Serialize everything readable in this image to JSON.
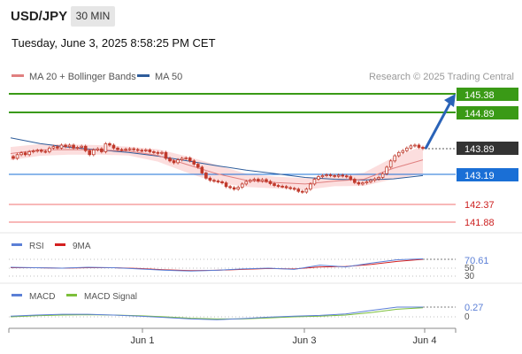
{
  "header": {
    "symbol": "USD/JPY",
    "timeframe": "30 MIN",
    "datetime": "Tuesday, June 3, 2025 8:58:25 PM CET"
  },
  "legend": {
    "ma20": "MA 20 + Bollinger Bands",
    "ma50": "MA 50",
    "credit": "Research © 2025 Trading Central"
  },
  "colors": {
    "candle": "#c0392b",
    "ma20": "#e08080",
    "ma50": "#2e5c9a",
    "bb_fill": "#fbd3d3",
    "resistance": "#3a9a16",
    "pivot": "#1a6fd6",
    "support": "#f5a0a0",
    "support_text": "#cc1f1f",
    "last_price_bg": "#333333",
    "rsi": "#5b7fd6",
    "rsi_ma": "#d42020",
    "macd": "#5b7fd6",
    "macd_signal": "#7cbf3a"
  },
  "price_levels": {
    "resistances": [
      "145.38",
      "144.89"
    ],
    "last": "143.89",
    "pivot": "143.19",
    "supports": [
      "142.37",
      "141.88"
    ]
  },
  "rsi_panel": {
    "labels": [
      "RSI",
      "9MA"
    ],
    "value": "70.61",
    "ticks": [
      "50",
      "30"
    ]
  },
  "macd_panel": {
    "labels": [
      "MACD",
      "MACD Signal"
    ],
    "value": "0.27",
    "ticks": [
      "0"
    ]
  },
  "x_axis": {
    "labels": [
      "Jun 1",
      "Jun 3",
      "Jun 4"
    ]
  },
  "chart_data": {
    "type": "candlestick",
    "series": [
      {
        "name": "USD/JPY",
        "values": [
          143.62,
          143.72,
          143.77,
          143.72,
          143.8,
          143.82,
          143.84,
          143.81,
          143.8,
          143.9,
          143.94,
          143.9,
          143.98,
          143.94,
          143.98,
          143.9,
          143.92,
          143.95,
          143.83,
          143.72,
          143.85,
          143.88,
          143.8,
          144.02,
          143.98,
          143.9,
          143.86,
          143.85,
          143.87,
          143.88,
          143.86,
          143.84,
          143.83,
          143.85,
          143.8,
          143.78,
          143.76,
          143.78,
          143.62,
          143.55,
          143.5,
          143.58,
          143.62,
          143.63,
          143.55,
          143.46,
          143.38,
          143.22,
          143.08,
          143.02,
          143.0,
          142.98,
          142.95,
          142.85,
          142.82,
          142.78,
          142.83,
          142.92,
          142.99,
          143.02,
          143.05,
          143.0,
          143.04,
          142.99,
          142.93,
          142.88,
          142.86,
          142.85,
          142.82,
          142.8,
          142.78,
          142.72,
          142.7,
          142.78,
          142.92,
          143.05,
          143.12,
          143.15,
          143.17,
          143.15,
          143.13,
          143.16,
          143.14,
          143.12,
          143.05,
          142.96,
          142.92,
          142.95,
          142.98,
          143.02,
          143.06,
          143.1,
          143.2,
          143.38,
          143.55,
          143.69,
          143.78,
          143.83,
          143.9,
          143.96,
          143.98,
          143.92,
          143.89
        ]
      },
      {
        "name": "MA 20",
        "values": [
          143.75,
          143.85,
          143.86,
          143.85,
          143.82,
          143.7,
          143.45,
          143.2,
          143.02,
          142.96,
          142.92,
          143.0,
          143.05,
          143.35,
          143.58
        ]
      },
      {
        "name": "MA 50",
        "values": [
          144.18,
          144.02,
          143.92,
          143.85,
          143.78,
          143.68,
          143.55,
          143.42,
          143.3,
          143.2,
          143.1,
          143.05,
          143.03,
          143.06,
          143.15
        ]
      },
      {
        "name": "RSI",
        "values": [
          51,
          50,
          49,
          51,
          50,
          47,
          44,
          42,
          44,
          47,
          49,
          46,
          56,
          52,
          61,
          69,
          71
        ]
      },
      {
        "name": "9MA",
        "values": [
          50,
          50,
          49,
          50,
          50,
          48,
          45,
          43,
          44,
          46,
          48,
          47,
          52,
          53,
          58,
          65,
          70
        ]
      },
      {
        "name": "MACD",
        "values": [
          0.02,
          0.05,
          0.07,
          0.07,
          0.05,
          0.02,
          -0.02,
          -0.06,
          -0.08,
          -0.05,
          -0.01,
          0.02,
          0.04,
          0.08,
          0.18,
          0.27,
          0.27
        ]
      },
      {
        "name": "MACD Signal",
        "values": [
          0.0,
          0.03,
          0.05,
          0.06,
          0.05,
          0.03,
          0.0,
          -0.04,
          -0.06,
          -0.06,
          -0.03,
          0.0,
          0.02,
          0.05,
          0.12,
          0.21,
          0.25
        ]
      }
    ],
    "y_ticks": [
      "145.38",
      "144.89",
      "143.89",
      "143.19",
      "142.37",
      "141.88"
    ],
    "x_ticks": [
      "Jun 1",
      "Jun 3",
      "Jun 4"
    ],
    "legend": [
      "MA 20 + Bollinger Bands",
      "MA 50"
    ],
    "grid": false
  }
}
